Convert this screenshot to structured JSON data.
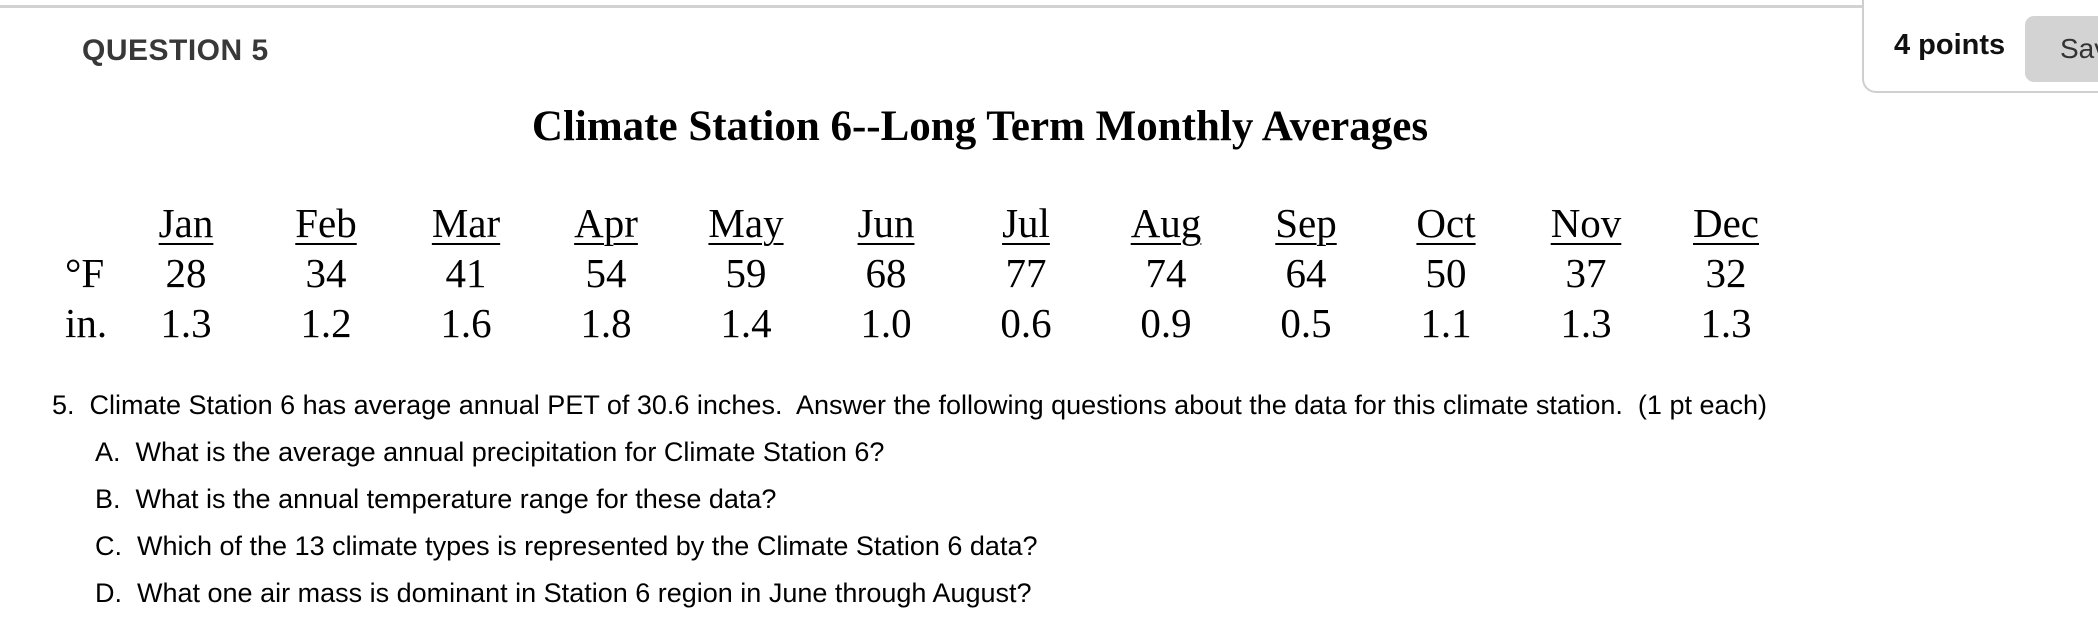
{
  "header": {
    "question_label": "QUESTION 5",
    "points_label": "4 points",
    "save_button_label": "Sav"
  },
  "content": {
    "table_title": "Climate Station 6--Long Term Monthly Averages",
    "climate_table": {
      "months": [
        "Jan",
        "Feb",
        "Mar",
        "Apr",
        "May",
        "Jun",
        "Jul",
        "Aug",
        "Sep",
        "Oct",
        "Nov",
        "Dec"
      ],
      "temp_row_label": "°F",
      "temps_f": [
        "28",
        "34",
        "41",
        "54",
        "59",
        "68",
        "77",
        "74",
        "64",
        "50",
        "37",
        "32"
      ],
      "precip_row_label": "in.",
      "precip_in": [
        "1.3",
        "1.2",
        "1.6",
        "1.8",
        "1.4",
        "1.0",
        "0.6",
        "0.9",
        "0.5",
        "1.1",
        "1.3",
        "1.3"
      ]
    },
    "question": {
      "main": "5.  Climate Station 6 has average annual PET of 30.6 inches.  Answer the following questions about the data for this climate station.  (1 pt each)",
      "sub_questions": [
        "A.  What is the average annual precipitation for Climate Station 6?",
        "B.  What is the annual temperature range for these data?",
        "C.  Which of the 13 climate types is represented by the Climate Station 6 data?",
        "D.  What one air mass is dominant in Station 6 region in June through August?"
      ]
    }
  },
  "colors": {
    "divider": "#d2d2d2",
    "header_text": "#383838",
    "save_button_bg": "#d3d3d3",
    "body_text": "#000000"
  }
}
